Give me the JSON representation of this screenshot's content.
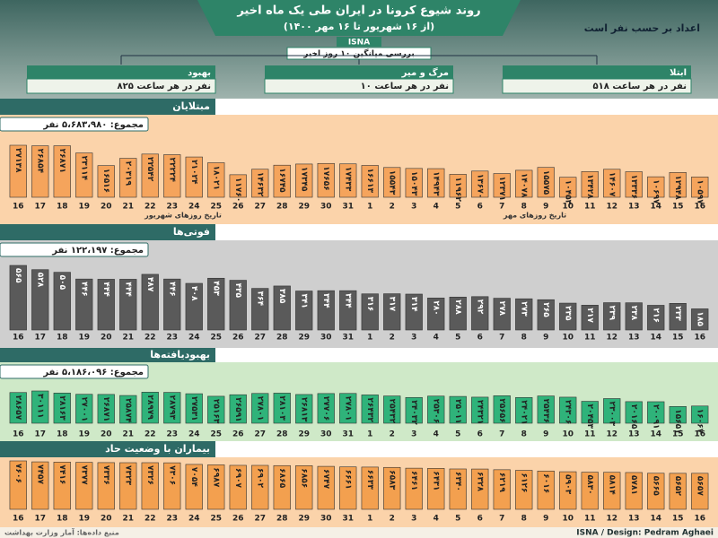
{
  "header": {
    "title": "روند شیوع کرونا در ایران طی یک ماه اخیر",
    "subtitle": "(از ۱۶ شهریور تا ۱۶ مهر ۱۴۰۰)",
    "brand": "ISNA",
    "note": "اعداد بر حسب نفر است",
    "average_caption": "بررسی میانگین ۱۰ روز اخیر"
  },
  "averages": [
    {
      "label": "بهبود",
      "value": "۸۲۵ نفر در هر ساعت"
    },
    {
      "label": "مرگ و میر",
      "value": "۱۰ نفر در هر ساعت"
    },
    {
      "label": "ابتلا",
      "value": "۵۱۸ نفر در هر ساعت"
    }
  ],
  "chart_data": [
    {
      "type": "bar",
      "title": "مبتلایان",
      "total": "مجموع: ۵،۶۸۳،۹۸۰ نفر",
      "color": "#f5a45c",
      "axis_labels": [
        "تاریخ روزهای شهریور",
        "تاریخ روزهای مهر"
      ],
      "categories": [
        "16",
        "17",
        "18",
        "19",
        "20",
        "21",
        "22",
        "23",
        "24",
        "25",
        "26",
        "27",
        "28",
        "29",
        "30",
        "31",
        "1",
        "2",
        "3",
        "4",
        "5",
        "6",
        "7",
        "8",
        "9",
        "10",
        "11",
        "12",
        "13",
        "14",
        "15",
        "16"
      ],
      "values": [
        27138,
        26854,
        26871,
        23114,
        16516,
        20319,
        22542,
        22224,
        21024,
        18021,
        11760,
        14632,
        16745,
        17345,
        17656,
        17433,
        16613,
        15543,
        15043,
        14943,
        11962,
        13670,
        12371,
        14078,
        15575,
        10453,
        13428,
        14607,
        13336,
        10697,
        12948,
        10597
      ],
      "value_labels": [
        "۲۷۱۳۸",
        "۲۶۸۵۴",
        "۲۶۸۷۱",
        "۲۳۱۱۴",
        "۱۶۵۱۶",
        "۲۰۳۱۹",
        "۲۲۵۴۲",
        "۲۲۲۲۴",
        "۲۱۰۲۴",
        "۱۸۰۲۱",
        "۱۱۷۶۰",
        "۱۴۶۳۲",
        "۱۶۷۴۵",
        "۱۷۳۴۵",
        "۱۷۶۵۶",
        "۱۷۴۳۳",
        "۱۶۶۱۳",
        "۱۵۵۴۳",
        "۱۵۰۴۳",
        "۱۴۹۴۳",
        "۱۱۹۶۲",
        "۱۳۶۷۰",
        "۱۲۳۷۱",
        "۱۴۰۷۸",
        "۱۵۵۷۵",
        "۱۰۴۵۳",
        "۱۳۴۲۸",
        "۱۴۶۰۷",
        "۱۳۳۳۶",
        "۱۰۶۹۷",
        "۱۲۹۴۸",
        "۱۰۵۹۷"
      ]
    },
    {
      "type": "bar",
      "title": "فوتی‌ها",
      "total": "مجموع: ۱۲۲،۱۹۷ نفر",
      "color": "#5a5a5a",
      "categories": [
        "16",
        "17",
        "18",
        "19",
        "20",
        "21",
        "22",
        "23",
        "24",
        "25",
        "26",
        "27",
        "28",
        "29",
        "30",
        "31",
        "1",
        "2",
        "3",
        "4",
        "5",
        "6",
        "7",
        "8",
        "9",
        "10",
        "11",
        "12",
        "13",
        "14",
        "15",
        "16"
      ],
      "values": [
        565,
        528,
        505,
        446,
        444,
        444,
        487,
        446,
        408,
        453,
        435,
        364,
        385,
        341,
        344,
        344,
        316,
        317,
        314,
        280,
        288,
        292,
        278,
        273,
        265,
        235,
        217,
        239,
        238,
        216,
        233,
        185
      ],
      "value_labels": [
        "۵۶۵",
        "۵۲۸",
        "۵۰۵",
        "۴۴۶",
        "۴۴۴",
        "۴۴۴",
        "۴۸۷",
        "۴۴۶",
        "۴۰۸",
        "۴۵۳",
        "۴۳۵",
        "۳۶۴",
        "۳۸۵",
        "۳۴۱",
        "۳۴۴",
        "۳۴۴",
        "۳۱۶",
        "۳۱۷",
        "۳۱۴",
        "۲۸۰",
        "۲۸۸",
        "۲۹۲",
        "۲۷۸",
        "۲۷۳",
        "۲۶۵",
        "۲۳۵",
        "۲۱۷",
        "۲۳۹",
        "۲۳۸",
        "۲۱۶",
        "۲۳۳",
        "۱۸۵"
      ]
    },
    {
      "type": "bar",
      "title": "بهبودیافته‌ها",
      "total": "مجموع: ۵،۱۸۶،۰۹۶ نفر",
      "color": "#2fb37a",
      "categories": [
        "16",
        "17",
        "18",
        "19",
        "20",
        "21",
        "22",
        "23",
        "24",
        "25",
        "26",
        "27",
        "28",
        "29",
        "30",
        "31",
        "1",
        "2",
        "3",
        "4",
        "5",
        "6",
        "7",
        "8",
        "9",
        "10",
        "11",
        "12",
        "13",
        "14",
        "15",
        "16"
      ],
      "values": [
        28657,
        30111,
        28163,
        27001,
        26871,
        25874,
        28979,
        28793,
        27531,
        25163,
        26591,
        27801,
        28103,
        26813,
        27706,
        27801,
        26432,
        25432,
        24032,
        25306,
        25011,
        24321,
        25656,
        24021,
        25436,
        24306,
        20453,
        23003,
        20165,
        20091,
        15651,
        16067
      ],
      "value_labels": [
        "۲۸۶۵۷",
        "۳۰۱۱۱",
        "۲۸۱۶۳",
        "۲۷۰۰۱",
        "۲۶۸۷۱",
        "۲۵۸۷۴",
        "۲۸۹۷۹",
        "۲۸۷۹۳",
        "۲۷۵۳۱",
        "۲۵۱۶۳",
        "۲۶۵۹۱",
        "۲۷۸۰۱",
        "۲۸۱۰۳",
        "۲۶۸۱۳",
        "۲۷۷۰۶",
        "۲۷۸۰۱",
        "۲۶۴۳۲",
        "۲۵۴۳۲",
        "۲۴۰۳۲",
        "۲۵۳۰۶",
        "۲۵۰۱۱",
        "۲۴۳۲۱",
        "۲۵۶۵۶",
        "۲۴۰۲۱",
        "۲۵۴۳۶",
        "۲۴۳۰۶",
        "۲۰۴۵۳",
        "۲۳۰۰۳",
        "۲۰۱۶۵",
        "۲۰۰۹۱",
        "۱۵۶۵۱",
        "۱۶۰۶۷"
      ]
    },
    {
      "type": "bar",
      "title": "بیماران با وضعیت حاد",
      "color": "#f3a04f",
      "categories": [
        "16",
        "17",
        "18",
        "19",
        "20",
        "21",
        "22",
        "23",
        "24",
        "25",
        "26",
        "27",
        "28",
        "29",
        "30",
        "31",
        "1",
        "2",
        "3",
        "4",
        "5",
        "6",
        "7",
        "8",
        "9",
        "10",
        "11",
        "12",
        "13",
        "14",
        "15",
        "16"
      ],
      "values": [
        7606,
        7457,
        7416,
        7377,
        7336,
        7323,
        7326,
        7306,
        7054,
        6987,
        6907,
        6902,
        6865,
        6856,
        6747,
        6661,
        6633,
        6583,
        6461,
        6431,
        6340,
        6328,
        6219,
        6126,
        6016,
        5903,
        5830,
        5814,
        5781,
        5665,
        5652,
        5657
      ],
      "value_labels": [
        "۷۶۰۶",
        "۷۴۵۷",
        "۷۴۱۶",
        "۷۳۷۷",
        "۷۳۳۶",
        "۷۳۲۳",
        "۷۳۲۶",
        "۷۳۰۶",
        "۷۰۵۴",
        "۶۹۸۷",
        "۶۹۰۷",
        "۶۹۰۲",
        "۶۸۶۵",
        "۶۸۵۶",
        "۶۷۴۷",
        "۶۶۶۱",
        "۶۶۳۳",
        "۶۵۸۳",
        "۶۴۶۱",
        "۶۴۳۱",
        "۶۳۴۰",
        "۶۳۲۸",
        "۶۲۱۹",
        "۶۱۲۶",
        "۶۰۱۶",
        "۵۹۰۳",
        "۵۸۳۰",
        "۵۸۱۴",
        "۵۷۸۱",
        "۵۶۶۵",
        "۵۶۵۲",
        "۵۶۵۷"
      ]
    }
  ],
  "footer": {
    "credit": "ISNA / Design: Pedram Aghaei",
    "source": "منبع داده‌ها: آمار وزارت بهداشت"
  }
}
